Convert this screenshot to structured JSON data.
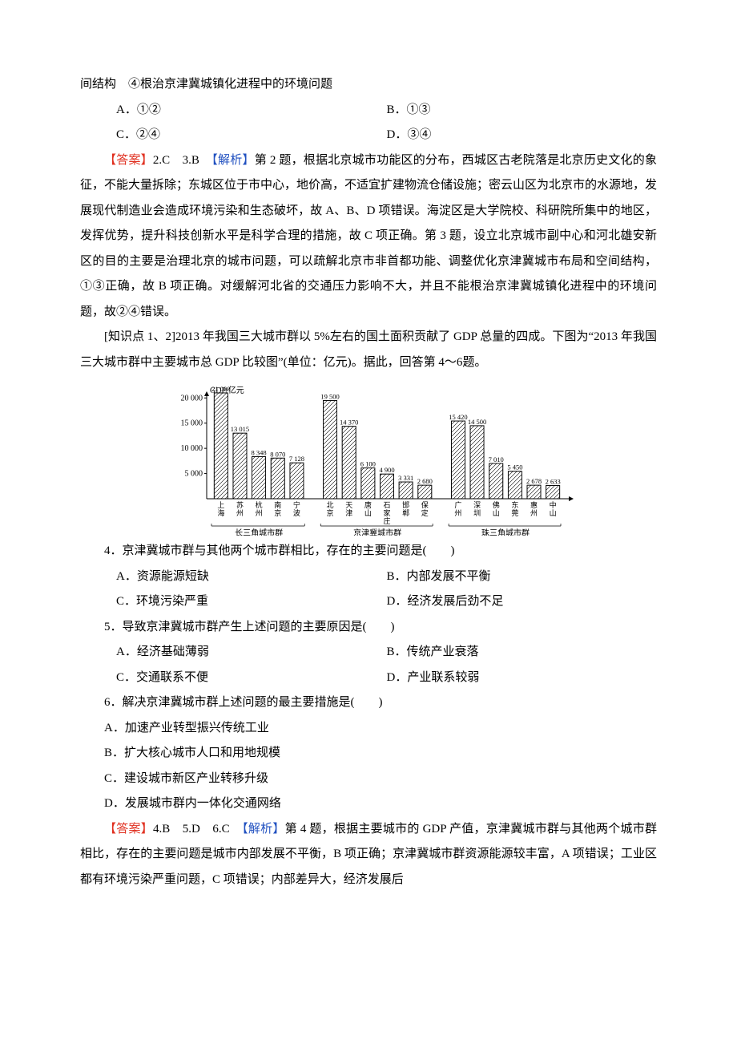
{
  "lead_fragment": "间结构　④根治京津冀城镇化进程中的环境问题",
  "options_ac": {
    "a": "A．①②",
    "b": "B．①③",
    "c": "C．②④",
    "d": "D．③④"
  },
  "answer23": {
    "ans_label": "【答案】",
    "ans_text": "2.C　3.B　",
    "exp_label": "【解析】",
    "exp_text": "第 2 题，根据北京城市功能区的分布，西城区古老院落是北京历史文化的象征，不能大量拆除；东城区位于市中心，地价高，不适宜扩建物流仓储设施；密云山区为北京市的水源地，发展现代制造业会造成环境污染和生态破坏，故 A、B、D 项错误。海淀区是大学院校、科研院所集中的地区，发挥优势，提升科技创新水平是科学合理的措施，故 C 项正确。第 3 题，设立北京城市副中心和河北雄安新区的目的主要是治理北京的城市问题，可以疏解北京市非首都功能、调整优化京津冀城市布局和空间结构，①③正确，故 B 项正确。对缓解河北省的交通压力影响不大，并且不能根治京津冀城镇化进程中的环境问题，故②④错误。"
  },
  "stem46": "[知识点 1、2]2013 年我国三大城市群以 5%左右的国土面积贡献了 GDP 总量的四成。下图为“2013 年我国三大城市群中主要城市总 GDP 比较图”(单位：亿元)。据此，回答第 4～6题。",
  "chart": {
    "ylabel": "GDP/亿元",
    "ylim": [
      0,
      21000
    ],
    "yticks": [
      5000,
      10000,
      15000,
      20000
    ],
    "ytick_labels": [
      "5 000",
      "10 000",
      "15 000",
      "20 000"
    ],
    "bar_fill": "#ffffff",
    "bar_stroke": "#000000",
    "hatch": true,
    "bg": "#ffffff",
    "axis_fontsize": 10,
    "label_fontsize": 9,
    "group_fontsize": 10,
    "value_fontsize": 8.5,
    "groups": [
      {
        "name": "长三角城市群",
        "bars": [
          {
            "label": "上海",
            "value": 21000,
            "vlabel": "21 000"
          },
          {
            "label": "苏州",
            "value": 13015,
            "vlabel": "13 015"
          },
          {
            "label": "杭州",
            "value": 8348,
            "vlabel": "8 348"
          },
          {
            "label": "南京",
            "value": 8070,
            "vlabel": "8 070"
          },
          {
            "label": "宁波",
            "value": 7128,
            "vlabel": "7 128"
          }
        ]
      },
      {
        "name": "京津冀城市群",
        "bars": [
          {
            "label": "北京",
            "value": 19500,
            "vlabel": "19 500"
          },
          {
            "label": "天津",
            "value": 14370,
            "vlabel": "14 370"
          },
          {
            "label": "唐山",
            "value": 6100,
            "vlabel": "6 100"
          },
          {
            "label": "石家庄",
            "value": 4900,
            "vlabel": "4 900"
          },
          {
            "label": "邯郸",
            "value": 3331,
            "vlabel": "3 331"
          },
          {
            "label": "保定",
            "value": 2680,
            "vlabel": "2 680"
          }
        ]
      },
      {
        "name": "珠三角城市群",
        "bars": [
          {
            "label": "广州",
            "value": 15420,
            "vlabel": "15 420"
          },
          {
            "label": "深圳",
            "value": 14500,
            "vlabel": "14 500"
          },
          {
            "label": "佛山",
            "value": 7010,
            "vlabel": "7 010"
          },
          {
            "label": "东莞",
            "value": 5450,
            "vlabel": "5 450"
          },
          {
            "label": "惠州",
            "value": 2678,
            "vlabel": "2 678"
          },
          {
            "label": "中山",
            "value": 2633,
            "vlabel": "2 633"
          }
        ]
      }
    ]
  },
  "q4": {
    "stem": "4．京津冀城市群与其他两个城市群相比，存在的主要问题是(　　)",
    "a": "A．资源能源短缺",
    "b": "B．内部发展不平衡",
    "c": "C．环境污染严重",
    "d": "D．经济发展后劲不足"
  },
  "q5": {
    "stem": "5．导致京津冀城市群产生上述问题的主要原因是(　　)",
    "a": "A．经济基础薄弱",
    "b": "B．传统产业衰落",
    "c": "C．交通联系不便",
    "d": "D．产业联系较弱"
  },
  "q6": {
    "stem": "6．解决京津冀城市群上述问题的最主要措施是(　　)",
    "a": "A．加速产业转型振兴传统工业",
    "b": "B．扩大核心城市人口和用地规模",
    "c": "C．建设城市新区产业转移升级",
    "d": "D．发展城市群内一体化交通网络"
  },
  "answer456": {
    "ans_label": "【答案】",
    "ans_text": "4.B　5.D　6.C　",
    "exp_label": "【解析】",
    "exp_text": "第 4 题，根据主要城市的 GDP 产值，京津冀城市群与其他两个城市群相比，存在的主要问题是城市内部发展不平衡，B 项正确；京津冀城市群资源能源较丰富，A 项错误；工业区都有环境污染严重问题，C 项错误；内部差异大，经济发展后"
  }
}
